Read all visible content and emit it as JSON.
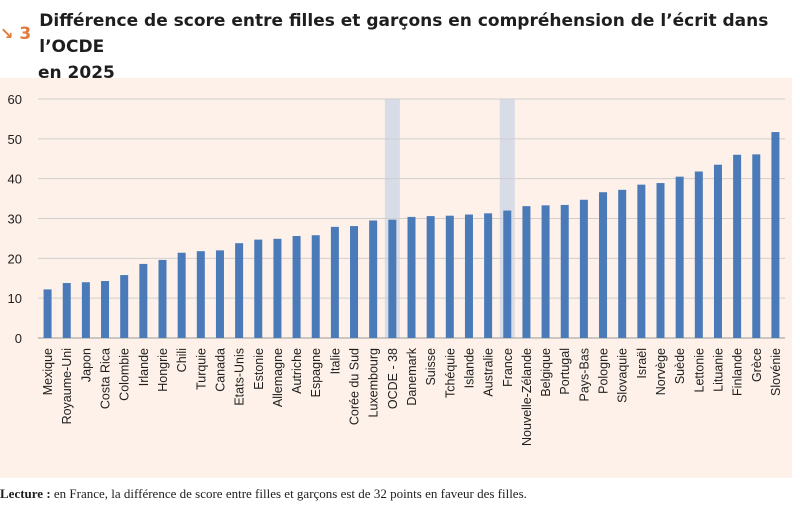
{
  "header": {
    "icon": "arrow-down-right-icon",
    "figure_number": "3",
    "title_line1": "Différence de score entre filles et garçons en compréhension de l’écrit dans l’OCDE",
    "title_line2": "en 2025"
  },
  "colors": {
    "accent": "#e17b3c",
    "bar": "#4a7ab8",
    "highlight_band": "#d8dce6",
    "panel_background": "#fdf1e9"
  },
  "chart_data": {
    "type": "bar",
    "title": "",
    "xlabel": "",
    "ylabel": "",
    "ylim": [
      0,
      60
    ],
    "yticks": [
      0,
      10,
      20,
      30,
      40,
      50,
      60
    ],
    "grid": true,
    "highlighted": [
      "OCDE - 38",
      "France"
    ],
    "categories": [
      "Mexique",
      "Royaume-Uni",
      "Japon",
      "Costa Rica",
      "Colombie",
      "Irlande",
      "Hongrie",
      "Chili",
      "Turquie",
      "Canada",
      "Etats-Unis",
      "Estonie",
      "Allemagne",
      "Autriche",
      "Espagne",
      "Italie",
      "Corée du Sud",
      "Luxembourg",
      "OCDE - 38",
      "Danemark",
      "Suisse",
      "Tchéquie",
      "Islande",
      "Australie",
      "France",
      "Nouvelle-Zélande",
      "Belgique",
      "Portugal",
      "Pays-Bas",
      "Pologne",
      "Slovaquie",
      "Israël",
      "Norvège",
      "Suède",
      "Lettonie",
      "Lituanie",
      "Finlande",
      "Grèce",
      "Slovénie"
    ],
    "values": [
      12.2,
      13.8,
      14.0,
      14.3,
      15.8,
      18.6,
      19.6,
      21.4,
      21.8,
      22.0,
      23.8,
      24.7,
      24.9,
      25.6,
      25.8,
      27.9,
      28.1,
      29.5,
      29.7,
      30.4,
      30.6,
      30.7,
      31.0,
      31.3,
      32.0,
      33.1,
      33.3,
      33.4,
      34.7,
      36.6,
      37.2,
      38.5,
      38.9,
      40.5,
      41.8,
      43.5,
      46.0,
      46.1,
      51.7
    ]
  },
  "caption": {
    "label": "Lecture :",
    "text": " en France, la différence de score entre filles et garçons est de 32 points en faveur des filles."
  }
}
